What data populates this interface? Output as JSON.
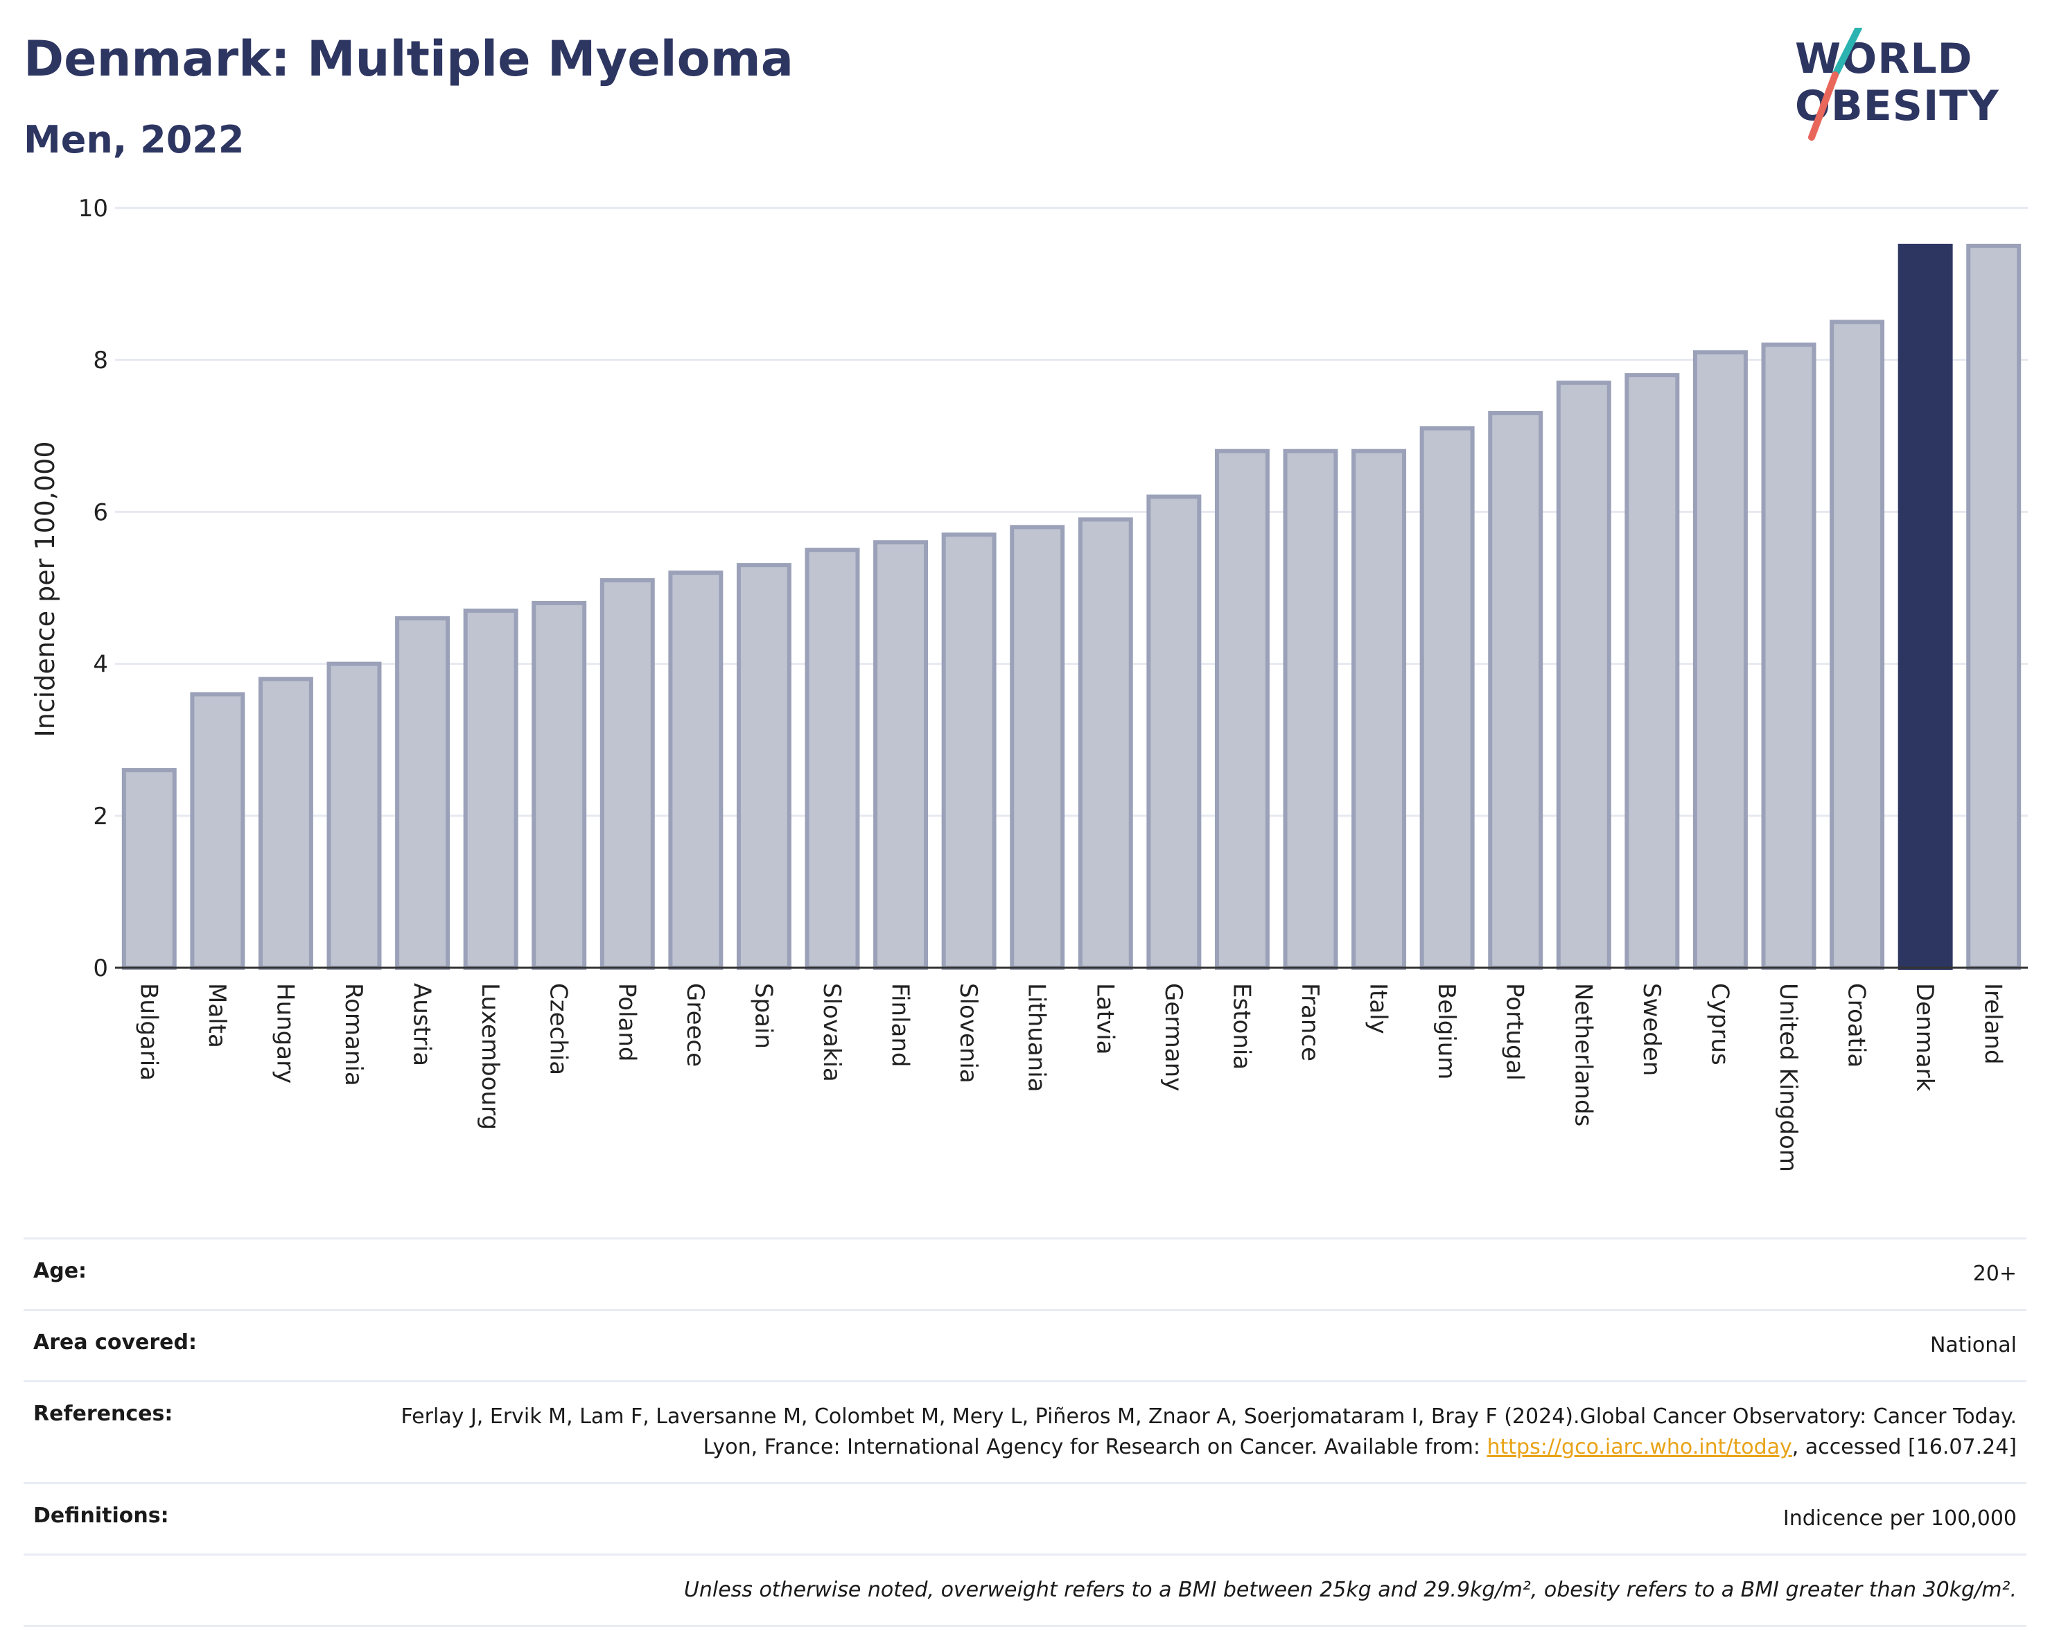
{
  "header": {
    "title": "Denmark: Multiple Myeloma",
    "subtitle": "Men, 2022",
    "logo_line1": "WORLD",
    "logo_line2": "OBESITY"
  },
  "chart_data": {
    "type": "bar",
    "ylabel": "Incidence per 100,000",
    "ylim": [
      0,
      10
    ],
    "yticks": [
      0,
      2,
      4,
      6,
      8,
      10
    ],
    "grid": true,
    "highlight": "Denmark",
    "colors": {
      "bar": "#c0c4d1",
      "bar_border": "#9aa1b8",
      "highlight": "#2d3561",
      "grid": "#e6e9f0"
    },
    "categories": [
      "Bulgaria",
      "Malta",
      "Hungary",
      "Romania",
      "Austria",
      "Luxembourg",
      "Czechia",
      "Poland",
      "Greece",
      "Spain",
      "Slovakia",
      "Finland",
      "Slovenia",
      "Lithuania",
      "Latvia",
      "Germany",
      "Estonia",
      "France",
      "Italy",
      "Belgium",
      "Portugal",
      "Netherlands",
      "Sweden",
      "Cyprus",
      "United Kingdom",
      "Croatia",
      "Denmark",
      "Ireland"
    ],
    "values": [
      2.6,
      3.6,
      3.8,
      4.0,
      4.6,
      4.7,
      4.8,
      5.1,
      5.2,
      5.3,
      5.5,
      5.6,
      5.7,
      5.8,
      5.9,
      6.2,
      6.8,
      6.8,
      6.8,
      7.1,
      7.3,
      7.7,
      7.8,
      8.1,
      8.2,
      8.5,
      9.5,
      9.5
    ]
  },
  "info": {
    "age_label": "Age:",
    "age_value": "20+",
    "area_label": "Area covered:",
    "area_value": "National",
    "references_label": "References:",
    "references_text1": "Ferlay J, Ervik M, Lam F, Laversanne M, Colombet M, Mery L, Piñeros M, Znaor A, Soerjomataram I, Bray F (2024).Global Cancer Observatory: Cancer Today. Lyon, France: International Agency for Research on Cancer. Available from: ",
    "references_link": "https://gco.iarc.who.int/today",
    "references_text2": ", accessed [16.07.24]",
    "definitions_label": "Definitions:",
    "definitions_value": "Indicence per 100,000",
    "note": "Unless otherwise noted, overweight refers to a BMI between 25kg and 29.9kg/m², obesity refers to a BMI greater than 30kg/m²."
  }
}
